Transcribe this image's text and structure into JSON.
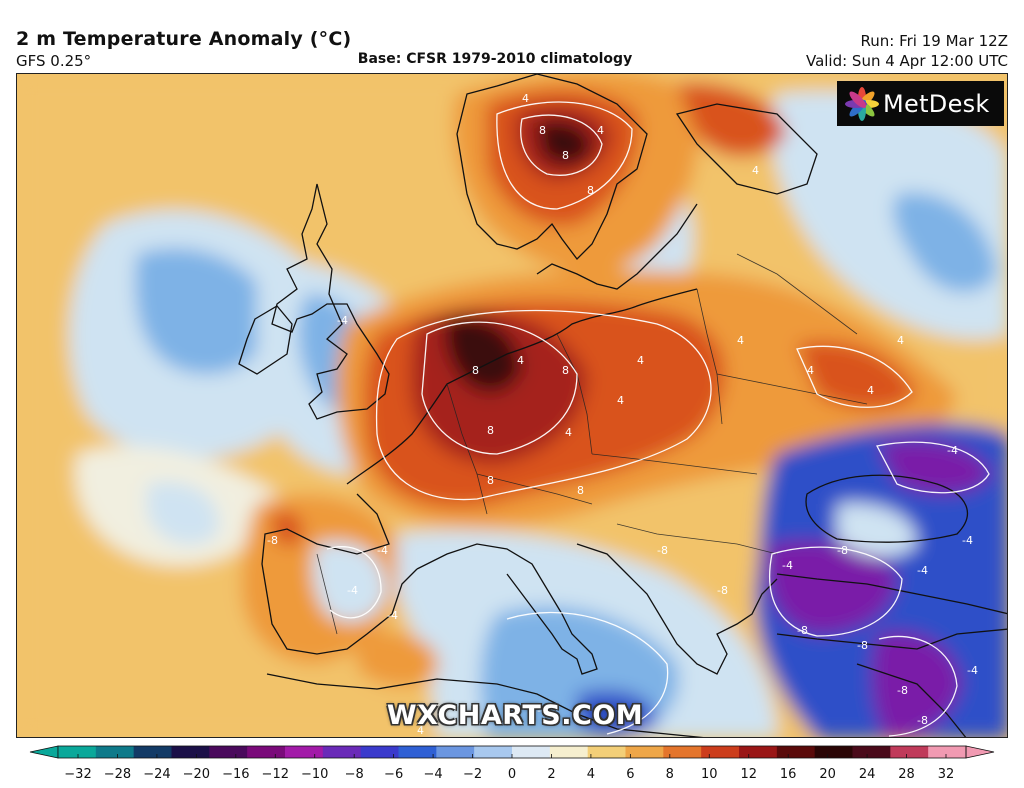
{
  "header": {
    "title": "2 m Temperature Anomaly (°C)",
    "model": "GFS 0.25°",
    "base": "Base: CFSR 1979-2010 climatology",
    "run": "Run: Fri 19 Mar 12Z",
    "valid": "Valid: Sun 4 Apr 12:00 UTC"
  },
  "logo": {
    "text": "MetDesk",
    "icon": "flower-logo-icon"
  },
  "watermark": {
    "text": "WXCHARTS.COM"
  },
  "colors": {
    "cold_extreme": "#3a0a60",
    "very_cold": "#7a1ea8",
    "cold": "#2f4fc8",
    "cool": "#7eb2e6",
    "slightly_cool": "#cfe3f2",
    "neutral": "#f1efe0",
    "slightly_warm": "#f2c36a",
    "warm": "#ee9a3a",
    "hot": "#d9531e",
    "very_hot": "#a5231a",
    "extreme_hot": "#3a0a10"
  },
  "map": {
    "region": "Europe",
    "contour_labels": [
      "4",
      "8",
      "8",
      "8",
      "4",
      "8",
      "4",
      "8",
      "8",
      "4",
      "4",
      "4",
      "-4",
      "-4",
      "-8",
      "-4",
      "-4",
      "-8",
      "-8",
      "-4",
      "-8",
      "-4",
      "-4",
      "-4",
      "-8",
      "-8",
      "-8",
      "-4",
      "-8",
      "4",
      "4",
      "4",
      "4",
      "4",
      "4",
      "-4",
      "8",
      "8"
    ]
  },
  "colorbar": {
    "ticks": [
      "−32",
      "−28",
      "−24",
      "−20",
      "−16",
      "−12",
      "−10",
      "−8",
      "−6",
      "−4",
      "−2",
      "0",
      "2",
      "4",
      "6",
      "8",
      "10",
      "12",
      "16",
      "20",
      "24",
      "28",
      "32"
    ],
    "colors": [
      "#0aa89a",
      "#0e7a8a",
      "#123a66",
      "#1b1048",
      "#4a0a5c",
      "#7a0a7a",
      "#a21aa8",
      "#6a2ab8",
      "#3a3acc",
      "#2f60d4",
      "#6b96e0",
      "#a8c8ee",
      "#dde9f4",
      "#f6efcf",
      "#f3cf78",
      "#eea648",
      "#e4752c",
      "#cc3d1c",
      "#9a1616",
      "#5a0a0a",
      "#2a0505",
      "#4a0a1a",
      "#c03a5a",
      "#f19ab2"
    ]
  }
}
